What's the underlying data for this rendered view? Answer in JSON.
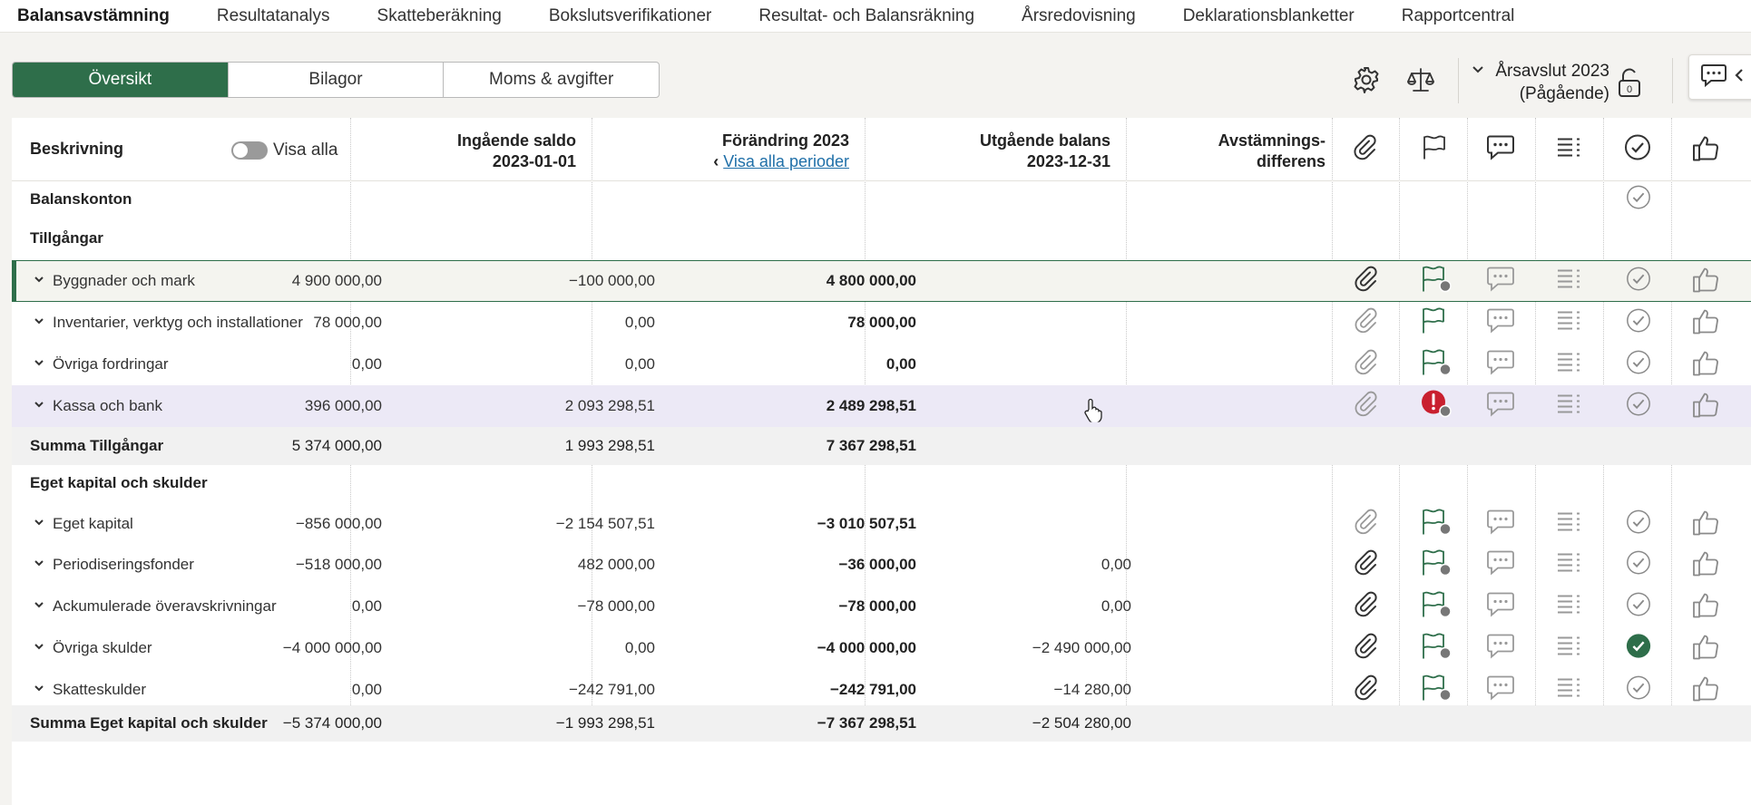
{
  "nav": {
    "items": [
      {
        "label": "Balansavstämning",
        "active": true
      },
      {
        "label": "Resultatanalys",
        "active": false
      },
      {
        "label": "Skatteberäkning",
        "active": false
      },
      {
        "label": "Bokslutsverifikationer",
        "active": false
      },
      {
        "label": "Resultat- och Balansräkning",
        "active": false
      },
      {
        "label": "Årsredovisning",
        "active": false
      },
      {
        "label": "Deklarationsblanketter",
        "active": false
      },
      {
        "label": "Rapportcentral",
        "active": false
      }
    ]
  },
  "tabs": {
    "oversikt": "Översikt",
    "bilagor": "Bilagor",
    "moms": "Moms & avgifter"
  },
  "toolbar": {
    "year_line1": "Årsavslut 2023",
    "year_line2": "(Pågående)",
    "lock_count": "0"
  },
  "header": {
    "beskrivning": "Beskrivning",
    "visa_alla": "Visa alla",
    "ingaende_1": "Ingående saldo",
    "ingaende_2": "2023-01-01",
    "forandring_1": "Förändring 2023",
    "forandring_link": "Visa alla perioder",
    "utgaende_1": "Utgående balans",
    "utgaende_2": "2023-12-31",
    "avst_1": "Avstämnings-",
    "avst_2": "differens"
  },
  "sections": {
    "balanskonton": "Balanskonton",
    "tillgangar": "Tillgångar",
    "eget_kapital_skulder": "Eget kapital och skulder"
  },
  "rows": [
    {
      "label": "Byggnader och mark",
      "ing": "4 900 000,00",
      "for": "−100 000,00",
      "utg": "4 800 000,00",
      "avst": ""
    },
    {
      "label": "Inventarier, verktyg och installationer",
      "ing": "78 000,00",
      "for": "0,00",
      "utg": "78 000,00",
      "avst": ""
    },
    {
      "label": "Övriga fordringar",
      "ing": "0,00",
      "for": "0,00",
      "utg": "0,00",
      "avst": ""
    },
    {
      "label": "Kassa och bank",
      "ing": "396 000,00",
      "for": "2 093 298,51",
      "utg": "2 489 298,51",
      "avst": ""
    },
    {
      "label": "Eget kapital",
      "ing": "−856 000,00",
      "for": "−2 154 507,51",
      "utg": "−3 010 507,51",
      "avst": ""
    },
    {
      "label": "Periodiseringsfonder",
      "ing": "−518 000,00",
      "for": "482 000,00",
      "utg": "−36 000,00",
      "avst": "0,00"
    },
    {
      "label": "Ackumulerade överavskrivningar",
      "ing": "0,00",
      "for": "−78 000,00",
      "utg": "−78 000,00",
      "avst": "0,00"
    },
    {
      "label": "Övriga skulder",
      "ing": "−4 000 000,00",
      "for": "0,00",
      "utg": "−4 000 000,00",
      "avst": "−2 490 000,00"
    },
    {
      "label": "Skatteskulder",
      "ing": "0,00",
      "for": "−242 791,00",
      "utg": "−242 791,00",
      "avst": "−14 280,00"
    }
  ],
  "sums": {
    "tillgangar": {
      "label": "Summa Tillgångar",
      "ing": "5 374 000,00",
      "for": "1 993 298,51",
      "utg": "7 367 298,51",
      "avst": ""
    },
    "eget": {
      "label": "Summa Eget kapital och skulder",
      "ing": "−5 374 000,00",
      "for": "−1 993 298,51",
      "utg": "−7 367 298,51",
      "avst": "−2 504 280,00"
    }
  },
  "colors": {
    "accent": "#2e6e4a",
    "error": "#c9202f",
    "link": "#1f6fa8"
  }
}
